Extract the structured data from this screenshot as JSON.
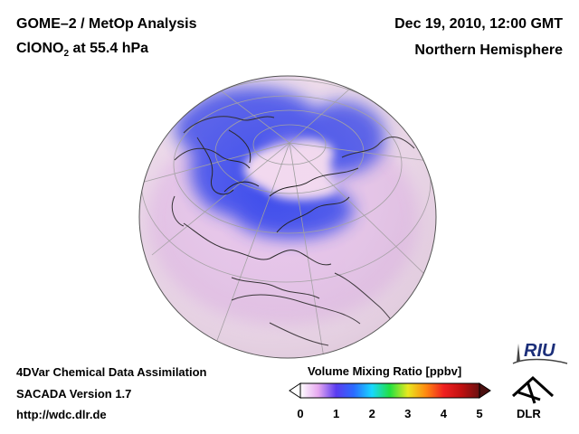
{
  "header": {
    "title_line1": "GOME–2 / MetOp Analysis",
    "species_prefix": "ClONO",
    "species_subscript": "2",
    "species_suffix": " at 55.4 hPa",
    "date": "Dec 19, 2010, 12:00 GMT",
    "region": "Northern Hemisphere"
  },
  "footer": {
    "line1": "4DVar Chemical Data Assimilation",
    "line2": "SACADA Version 1.7",
    "line3": "http://wdc.dlr.de"
  },
  "colorbar": {
    "title": "Volume Mixing Ratio [ppbv]",
    "ticks": [
      "0",
      "1",
      "2",
      "3",
      "4",
      "5"
    ],
    "colors": [
      "#ffffff",
      "#e6a8f0",
      "#5a3cf0",
      "#2a6cff",
      "#18d8ff",
      "#22e040",
      "#e8e820",
      "#ff8a10",
      "#f02020",
      "#c01010",
      "#6a1010"
    ]
  },
  "logos": {
    "riu_text": "RIU",
    "dlr_text": "DLR"
  },
  "colors": {
    "globe_background": "#f3e1f0",
    "high_region": "#2f3ee8",
    "core_region": "#f2d8ef",
    "coastline": "#111111",
    "graticule": "#999999"
  }
}
